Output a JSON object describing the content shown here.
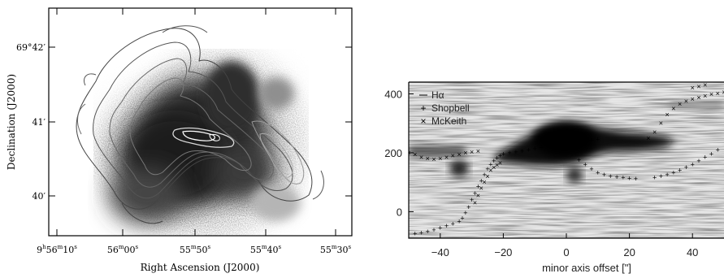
{
  "left_panel": {
    "xlabel": "Right Ascension (J2000)",
    "ylabel": "Declination (J2000)",
    "x_ticks": [
      {
        "h": "9",
        "h_unit": "h",
        "m": "56",
        "m_unit": "m",
        "s": "10",
        "s_unit": "s"
      },
      {
        "m": "56",
        "m_unit": "m",
        "s": "00",
        "s_unit": "s"
      },
      {
        "m": "55",
        "m_unit": "m",
        "s": "50",
        "s_unit": "s"
      },
      {
        "m": "55",
        "m_unit": "m",
        "s": "40",
        "s_unit": "s"
      },
      {
        "m": "55",
        "m_unit": "m",
        "s": "30",
        "s_unit": "s"
      }
    ],
    "y_ticks": [
      "69°42′",
      "41′",
      "40′"
    ]
  },
  "chart_data": {
    "type": "scatter",
    "background": "position-velocity greyscale image",
    "xlabel": "minor axis offset [\"]",
    "ylabel": "",
    "xlim": [
      -50,
      50
    ],
    "ylim": [
      -90,
      440
    ],
    "x_ticks": [
      -40,
      -20,
      0,
      20,
      40
    ],
    "y_ticks": [
      0,
      200,
      400
    ],
    "legend": {
      "placement": "top-left",
      "entries": [
        {
          "label": "Hα",
          "marker": "line"
        },
        {
          "label": "Shopbell",
          "marker": "+"
        },
        {
          "label": "McKeith",
          "marker": "×"
        }
      ]
    },
    "series": [
      {
        "name": "Shopbell",
        "marker": "+",
        "points": [
          [
            -48,
            -75
          ],
          [
            -46,
            -72
          ],
          [
            -44,
            -68
          ],
          [
            -42,
            -62
          ],
          [
            -40,
            -55
          ],
          [
            -38,
            -48
          ],
          [
            -36,
            -42
          ],
          [
            -34,
            -34
          ],
          [
            -33,
            -22
          ],
          [
            -32,
            -5
          ],
          [
            -31,
            15
          ],
          [
            -30,
            40
          ],
          [
            -29,
            62
          ],
          [
            -28,
            85
          ],
          [
            -27,
            105
          ],
          [
            -26,
            125
          ],
          [
            -25,
            145
          ],
          [
            -24,
            160
          ],
          [
            -23,
            172
          ],
          [
            -22,
            182
          ],
          [
            -21,
            190
          ],
          [
            -20,
            196
          ],
          [
            -18,
            200
          ],
          [
            -16,
            203
          ],
          [
            -14,
            206
          ],
          [
            -12,
            210
          ],
          [
            -10,
            214
          ],
          [
            -8,
            218
          ],
          [
            -6,
            222
          ],
          [
            -4,
            226
          ],
          [
            -2,
            230
          ],
          [
            0,
            233
          ],
          [
            2,
            236
          ],
          [
            4,
            238
          ],
          [
            6,
            241
          ],
          [
            8,
            243
          ],
          [
            10,
            245
          ],
          [
            4,
            175
          ],
          [
            6,
            160
          ],
          [
            8,
            145
          ],
          [
            10,
            132
          ],
          [
            12,
            125
          ],
          [
            14,
            120
          ],
          [
            16,
            117
          ],
          [
            18,
            115
          ],
          [
            20,
            113
          ],
          [
            22,
            112
          ],
          [
            28,
            115
          ],
          [
            30,
            120
          ],
          [
            32,
            126
          ],
          [
            34,
            132
          ],
          [
            36,
            140
          ],
          [
            38,
            150
          ],
          [
            40,
            160
          ],
          [
            42,
            172
          ],
          [
            44,
            184
          ],
          [
            46,
            196
          ],
          [
            48,
            210
          ]
        ]
      },
      {
        "name": "McKeith",
        "marker": "×",
        "points": [
          [
            -50,
            200
          ],
          [
            -48,
            195
          ],
          [
            -46,
            185
          ],
          [
            -44,
            180
          ],
          [
            -42,
            178
          ],
          [
            -40,
            180
          ],
          [
            -38,
            185
          ],
          [
            -36,
            190
          ],
          [
            -34,
            195
          ],
          [
            -32,
            200
          ],
          [
            -30,
            203
          ],
          [
            -28,
            206
          ],
          [
            -29,
            30
          ],
          [
            -28,
            55
          ],
          [
            -27,
            80
          ],
          [
            -26,
            100
          ],
          [
            -25,
            120
          ],
          [
            -24,
            140
          ],
          [
            -23,
            150
          ],
          [
            -22,
            158
          ],
          [
            -21,
            165
          ],
          [
            26,
            250
          ],
          [
            28,
            270
          ],
          [
            30,
            300
          ],
          [
            32,
            330
          ],
          [
            34,
            350
          ],
          [
            36,
            365
          ],
          [
            38,
            375
          ],
          [
            40,
            382
          ],
          [
            42,
            388
          ],
          [
            44,
            393
          ],
          [
            46,
            398
          ],
          [
            48,
            402
          ],
          [
            50,
            406
          ],
          [
            40,
            420
          ],
          [
            42,
            425
          ],
          [
            44,
            430
          ]
        ]
      }
    ]
  }
}
